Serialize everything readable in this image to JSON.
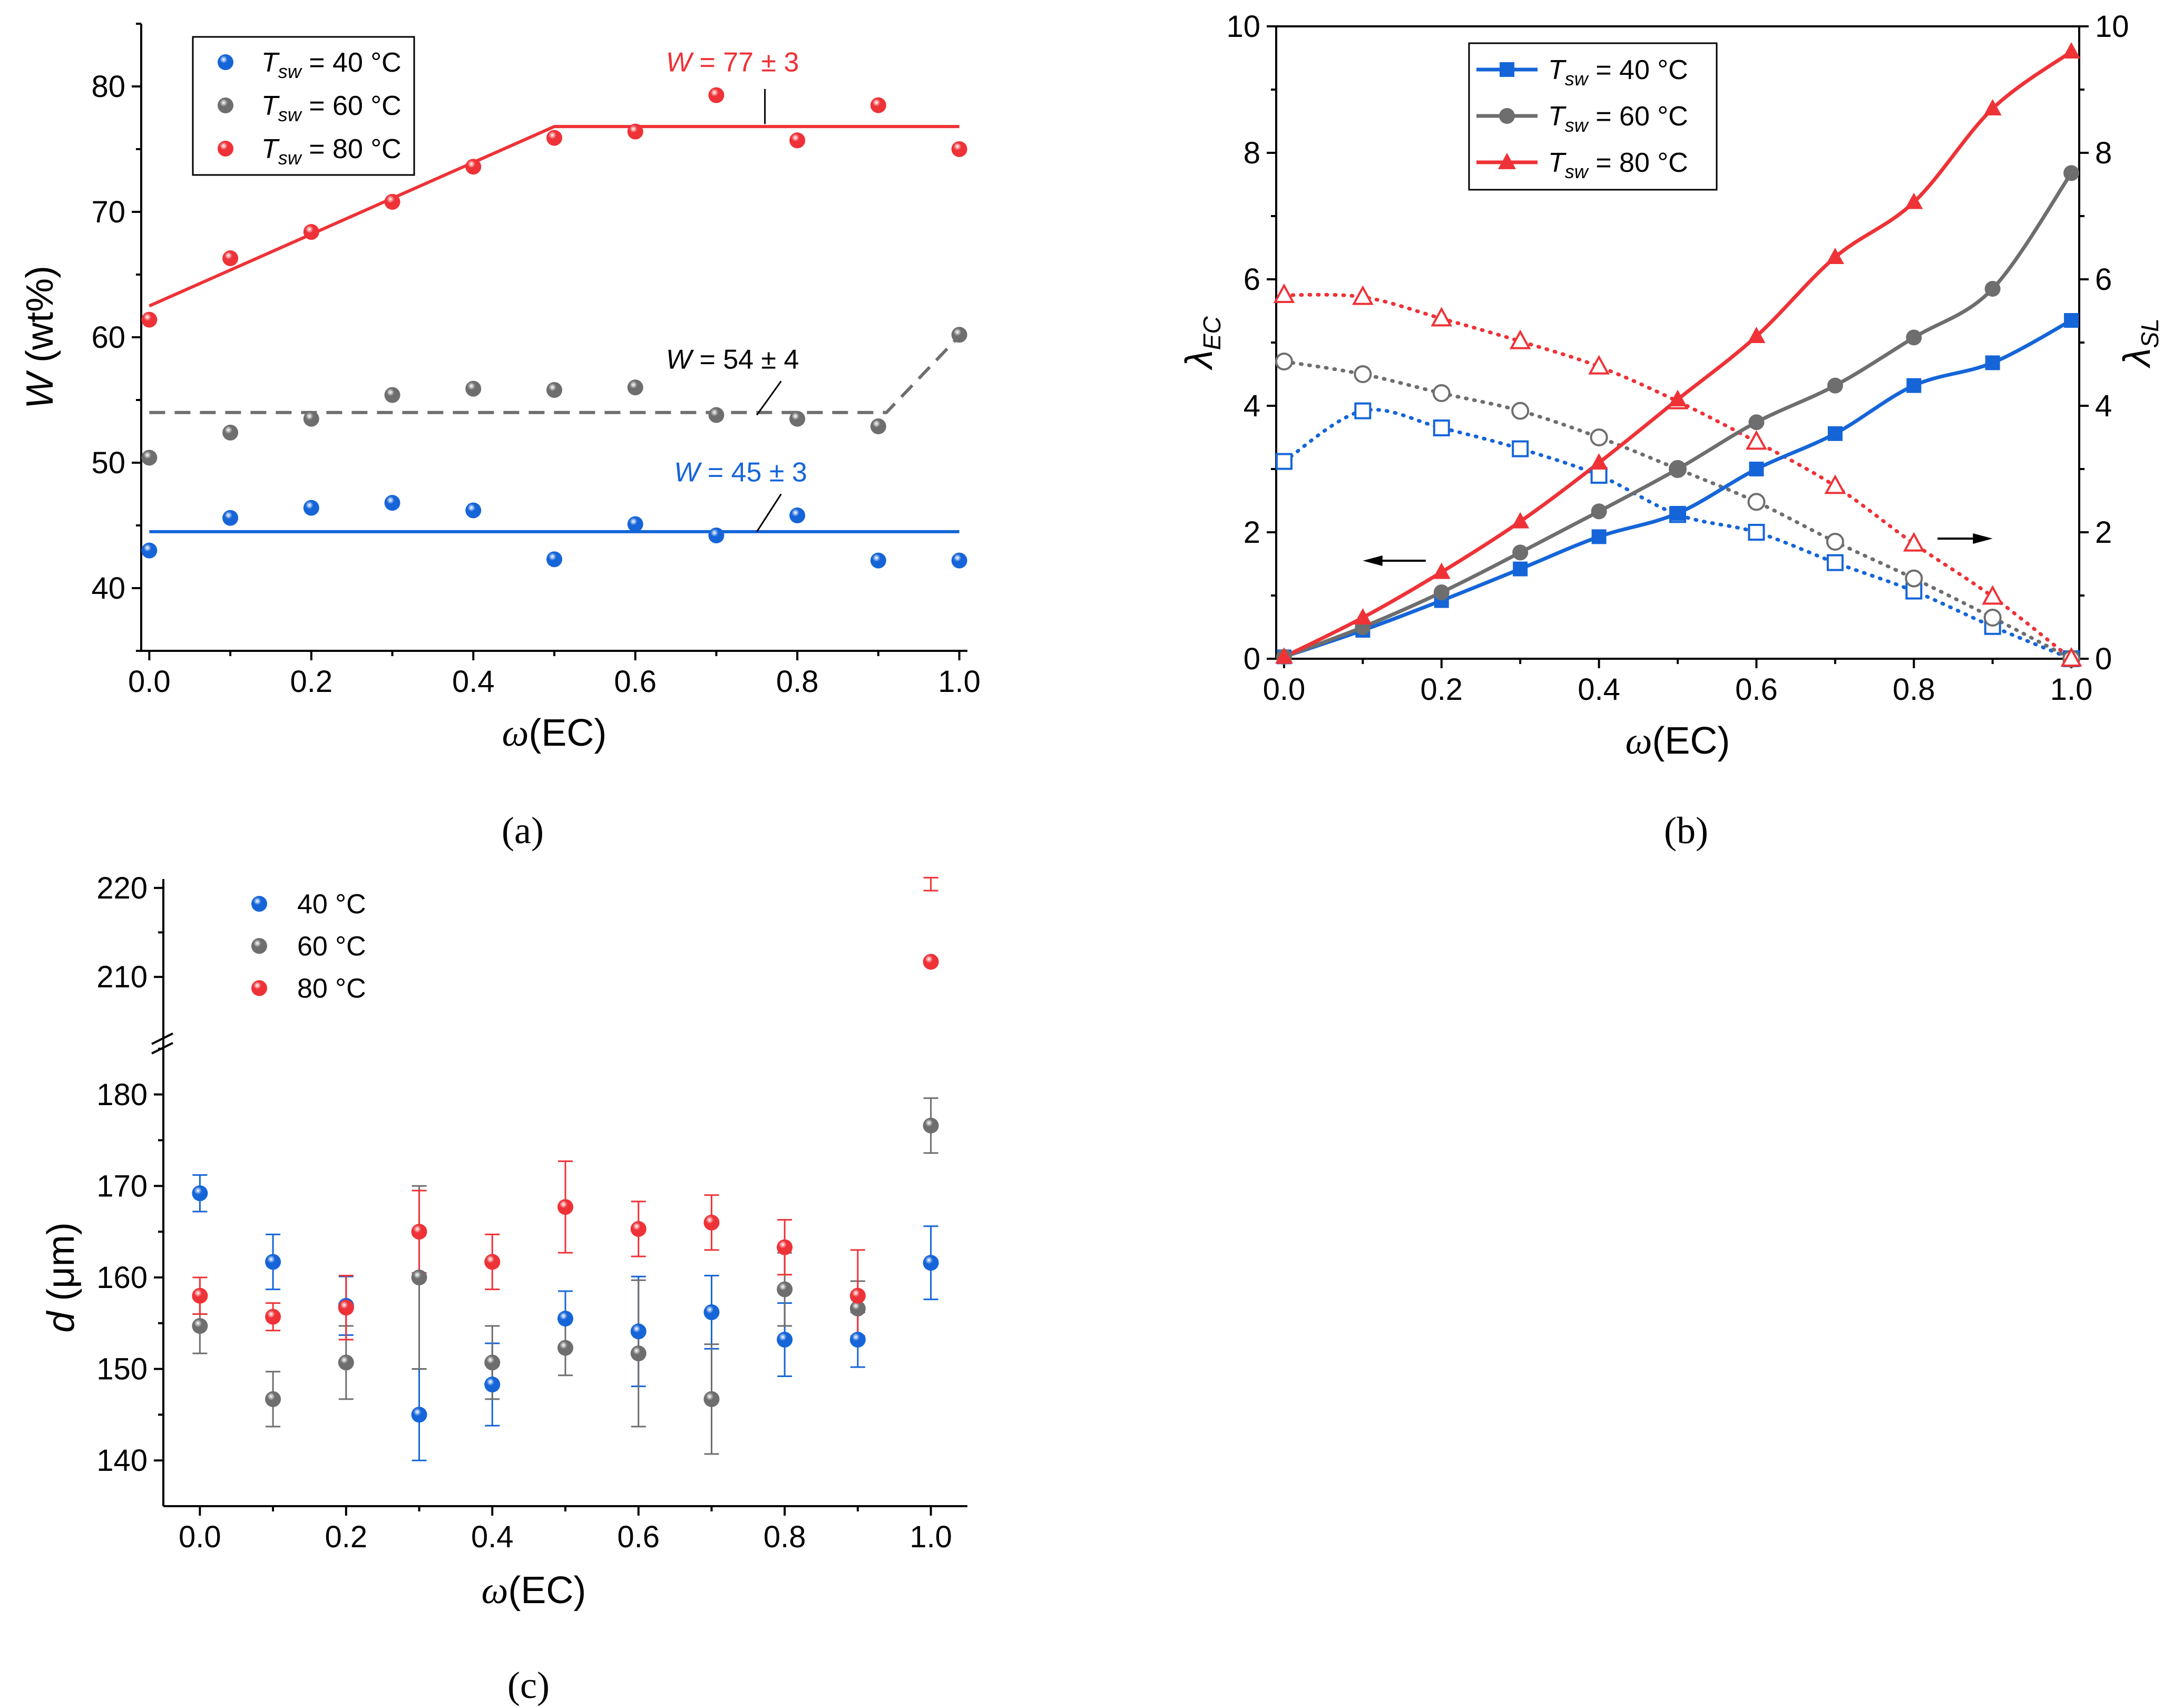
{
  "colors": {
    "blue": "#1565d8",
    "gray": "#6e6e6e",
    "red": "#ee3237",
    "black": "#000000"
  },
  "chart_data": [
    {
      "id": "a",
      "panel_label": "(a)",
      "type": "scatter",
      "xlabel": "ω(EC)",
      "ylabel": "W (wt%)",
      "xlim": [
        -0.01,
        1.01
      ],
      "ylim": [
        35,
        85
      ],
      "xticks": [
        "0.0",
        "0.2",
        "0.4",
        "0.6",
        "0.8",
        "1.0"
      ],
      "yticks": [
        "40",
        "50",
        "60",
        "70",
        "80"
      ],
      "x": [
        0.0,
        0.1,
        0.2,
        0.3,
        0.4,
        0.5,
        0.6,
        0.7,
        0.8,
        0.9,
        1.0
      ],
      "series": [
        {
          "name": "T_sw = 40 °C",
          "legend_prefix": "T",
          "legend_sub": "sw",
          "legend_suffix": " = 40 °C",
          "color": "blue",
          "values": [
            43.0,
            45.6,
            46.4,
            46.8,
            46.2,
            42.3,
            45.1,
            44.2,
            45.8,
            42.2,
            42.2
          ],
          "fit": {
            "x": [
              0.0,
              1.0
            ],
            "y": [
              44.5,
              44.5
            ],
            "style": "solid"
          }
        },
        {
          "name": "T_sw = 60 °C",
          "legend_prefix": "T",
          "legend_sub": "sw",
          "legend_suffix": " = 60 °C",
          "color": "gray",
          "values": [
            50.4,
            52.4,
            53.5,
            55.4,
            55.9,
            55.8,
            56.0,
            53.8,
            53.5,
            52.9,
            60.2
          ],
          "fit": {
            "x": [
              0.0,
              0.91,
              1.0
            ],
            "y": [
              54.0,
              54.0,
              60.1
            ],
            "style": "dashed"
          }
        },
        {
          "name": "T_sw = 80 °C",
          "legend_prefix": "T",
          "legend_sub": "sw",
          "legend_suffix": " = 80 °C",
          "color": "red",
          "values": [
            61.4,
            66.3,
            68.4,
            70.8,
            73.6,
            75.9,
            76.4,
            79.3,
            75.7,
            78.5,
            75.0
          ],
          "fit": {
            "x": [
              0.0,
              0.5,
              1.0
            ],
            "y": [
              62.5,
              76.8,
              76.8
            ],
            "style": "solid"
          }
        }
      ],
      "annotations": [
        {
          "pre": "W",
          "post": " = 77 ± 3",
          "color": "red",
          "x": 0.72,
          "y": 81.2,
          "lx1": 0.76,
          "ly1": 79.8,
          "lx2": 0.76,
          "ly2": 77.0
        },
        {
          "pre": "W",
          "post": " = 54 ± 4",
          "color": "black",
          "x": 0.72,
          "y": 57.5,
          "lx1": 0.78,
          "ly1": 56.5,
          "lx2": 0.75,
          "ly2": 53.8
        },
        {
          "pre": "W",
          "post": " = 45 ± 3",
          "color": "blue",
          "x": 0.73,
          "y": 48.5,
          "lx1": 0.78,
          "ly1": 47.5,
          "lx2": 0.75,
          "ly2": 44.5
        }
      ]
    },
    {
      "id": "b",
      "panel_label": "(b)",
      "type": "line",
      "xlabel": "ω(EC)",
      "ylabel_left": "λEC",
      "ylabel_left_base": "λ",
      "ylabel_left_sub": "EC",
      "ylabel_right": "λSL",
      "ylabel_right_base": "λ",
      "ylabel_right_sub": "SL",
      "xlim": [
        -0.01,
        1.01
      ],
      "ylim": [
        0,
        10
      ],
      "xticks": [
        "0.0",
        "0.2",
        "0.4",
        "0.6",
        "0.8",
        "1.0"
      ],
      "yticks": [
        "0",
        "2",
        "4",
        "6",
        "8",
        "10"
      ],
      "x": [
        0.0,
        0.1,
        0.2,
        0.3,
        0.4,
        0.5,
        0.6,
        0.7,
        0.8,
        0.9,
        1.0
      ],
      "series": [
        {
          "name": "T_sw = 40 °C",
          "legend_prefix": "T",
          "legend_sub": "sw",
          "legend_suffix": " = 40 °C",
          "color": "blue",
          "marker": "square",
          "lambda_EC": [
            0.03,
            0.45,
            0.92,
            1.42,
            1.93,
            2.3,
            3.0,
            3.56,
            4.32,
            4.68,
            5.35
          ],
          "lambda_SL": [
            3.12,
            3.92,
            3.65,
            3.32,
            2.9,
            2.28,
            2.0,
            1.52,
            1.07,
            0.51,
            0.0
          ]
        },
        {
          "name": "T_sw = 60 °C",
          "legend_prefix": "T",
          "legend_sub": "sw",
          "legend_suffix": " = 60 °C",
          "color": "gray",
          "marker": "circle",
          "lambda_EC": [
            0.03,
            0.5,
            1.05,
            1.68,
            2.33,
            3.0,
            3.74,
            4.32,
            5.08,
            5.85,
            7.68
          ],
          "lambda_SL": [
            4.7,
            4.5,
            4.2,
            3.92,
            3.5,
            3.0,
            2.48,
            1.85,
            1.27,
            0.65,
            0.0
          ]
        },
        {
          "name": "T_sw = 80 °C",
          "legend_prefix": "T",
          "legend_sub": "sw",
          "legend_suffix": " = 80 °C",
          "color": "red",
          "marker": "triangle",
          "lambda_EC": [
            0.03,
            0.65,
            1.37,
            2.17,
            3.1,
            4.1,
            5.1,
            6.35,
            7.22,
            8.7,
            9.6
          ],
          "lambda_SL": [
            5.75,
            5.72,
            5.38,
            5.02,
            4.62,
            4.07,
            3.43,
            2.73,
            1.82,
            0.98,
            0.0
          ]
        }
      ],
      "arrows": [
        {
          "direction": "left",
          "axis": "λEC"
        },
        {
          "direction": "right",
          "axis": "λSL"
        }
      ]
    },
    {
      "id": "c",
      "panel_label": "(c)",
      "type": "scatter",
      "xlabel": "ω(EC)",
      "ylabel": "d (μm)",
      "xlim": [
        -0.05,
        1.05
      ],
      "y_broken_axis": {
        "lower": [
          135,
          185
        ],
        "upper": [
          204,
          221
        ]
      },
      "xticks": [
        "0.0",
        "0.2",
        "0.4",
        "0.6",
        "0.8",
        "1.0"
      ],
      "yticks_lower": [
        "140",
        "150",
        "160",
        "170",
        "180"
      ],
      "yticks_upper": [
        "210",
        "220"
      ],
      "x": [
        0.0,
        0.1,
        0.2,
        0.3,
        0.4,
        0.5,
        0.6,
        0.7,
        0.8,
        0.9,
        1.0
      ],
      "series": [
        {
          "name": "40 °C",
          "color": "blue",
          "values": [
            169.2,
            161.7,
            156.9,
            145.0,
            148.3,
            155.5,
            154.1,
            156.2,
            153.2,
            153.2,
            161.6
          ],
          "errors": [
            2.0,
            3.0,
            3.2,
            5.0,
            4.5,
            3.0,
            6.0,
            4.0,
            4.0,
            3.0,
            4.0
          ]
        },
        {
          "name": "60 °C",
          "color": "gray",
          "values": [
            154.7,
            146.7,
            150.7,
            160.0,
            150.7,
            152.3,
            151.7,
            146.7,
            158.7,
            156.6,
            176.6
          ],
          "errors": [
            3.0,
            3.0,
            4.0,
            10.0,
            4.0,
            3.0,
            8.0,
            6.0,
            4.0,
            3.0,
            3.0
          ]
        },
        {
          "name": "80 °C",
          "color": "red",
          "values": [
            158.0,
            155.7,
            156.7,
            165.0,
            161.7,
            167.7,
            165.3,
            166.0,
            163.3,
            158.0,
            211.7
          ],
          "errors": [
            2.0,
            1.5,
            3.5,
            4.5,
            3.0,
            5.0,
            3.0,
            3.0,
            3.0,
            5.0,
            8.0
          ]
        }
      ]
    }
  ]
}
